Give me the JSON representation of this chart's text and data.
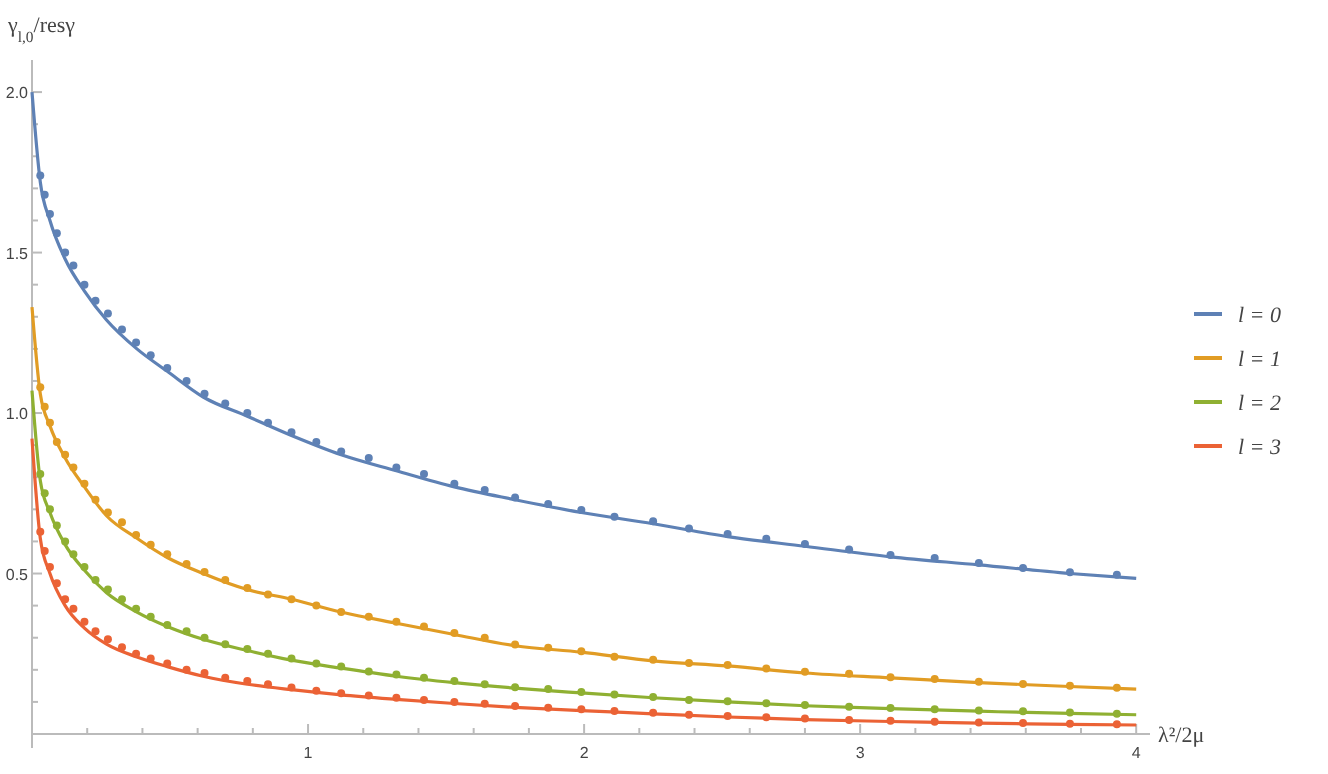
{
  "chart_data": {
    "type": "line",
    "xlabel": "λ²/2μ",
    "ylabel": "γ$_{l,0}$/resγ",
    "xlim": [
      0,
      4.05
    ],
    "ylim": [
      0,
      2.1
    ],
    "xticks": [
      {
        "value": 0.2,
        "label": null
      },
      {
        "value": 0.4,
        "label": null
      },
      {
        "value": 0.6,
        "label": null
      },
      {
        "value": 0.8,
        "label": null
      },
      1,
      {
        "value": 1.2,
        "label": null
      },
      {
        "value": 1.4,
        "label": null
      },
      {
        "value": 1.6,
        "label": null
      },
      {
        "value": 1.8,
        "label": null
      },
      2,
      {
        "value": 2.2,
        "label": null
      },
      {
        "value": 2.4,
        "label": null
      },
      {
        "value": 2.6,
        "label": null
      },
      {
        "value": 2.8,
        "label": null
      },
      3,
      {
        "value": 3.2,
        "label": null
      },
      {
        "value": 3.4,
        "label": null
      },
      {
        "value": 3.6,
        "label": null
      },
      {
        "value": 3.8,
        "label": null
      },
      4
    ],
    "yticks": [
      {
        "value": 0.1,
        "label": null
      },
      {
        "value": 0.2,
        "label": null
      },
      {
        "value": 0.3,
        "label": null
      },
      {
        "value": 0.4,
        "label": null
      },
      0.5,
      {
        "value": 0.6,
        "label": null
      },
      {
        "value": 0.7,
        "label": null
      },
      {
        "value": 0.8,
        "label": null
      },
      {
        "value": 0.9,
        "label": null
      },
      {
        "value": 1,
        "label": "1.0"
      },
      {
        "value": 1.1,
        "label": null
      },
      {
        "value": 1.2,
        "label": null
      },
      {
        "value": 1.3,
        "label": null
      },
      {
        "value": 1.4,
        "label": null
      },
      1.5,
      {
        "value": 1.6,
        "label": null
      },
      {
        "value": 1.7,
        "label": null
      },
      {
        "value": 1.8,
        "label": null
      },
      {
        "value": 1.9,
        "label": null
      },
      {
        "value": 2,
        "label": "2.0"
      }
    ],
    "grid": false,
    "legend": "right",
    "line_style": "solid",
    "marker": "none",
    "series": [
      {
        "name": "l = 0",
        "color": "#5e81b5",
        "x": [
          0,
          0.03,
          0.065,
          0.12,
          0.19,
          0.27,
          0.38,
          0.49,
          0.62,
          0.78,
          0.94,
          1.12,
          1.32,
          1.53,
          1.75,
          1.99,
          2.25,
          2.52,
          2.8,
          3.11,
          3.43,
          3.76,
          4
        ],
        "values": [
          2.0,
          1.72,
          1.6,
          1.48,
          1.38,
          1.29,
          1.2,
          1.13,
          1.05,
          0.99,
          0.93,
          0.87,
          0.82,
          0.77,
          0.73,
          0.69,
          0.655,
          0.615,
          0.585,
          0.552,
          0.527,
          0.5,
          0.485
        ]
      },
      {
        "name": "l = 1",
        "color": "#e19c24",
        "x": [
          0,
          0.03,
          0.065,
          0.12,
          0.19,
          0.27,
          0.38,
          0.49,
          0.62,
          0.78,
          0.94,
          1.12,
          1.32,
          1.53,
          1.75,
          1.99,
          2.25,
          2.52,
          2.8,
          3.11,
          3.43,
          3.76,
          4
        ],
        "values": [
          1.33,
          1.06,
          0.96,
          0.86,
          0.77,
          0.68,
          0.61,
          0.55,
          0.5,
          0.45,
          0.42,
          0.38,
          0.345,
          0.31,
          0.275,
          0.255,
          0.228,
          0.212,
          0.19,
          0.175,
          0.16,
          0.148,
          0.14
        ]
      },
      {
        "name": "l = 2",
        "color": "#8fb032",
        "x": [
          0,
          0.03,
          0.065,
          0.12,
          0.19,
          0.27,
          0.38,
          0.49,
          0.62,
          0.78,
          0.94,
          1.12,
          1.32,
          1.53,
          1.75,
          1.99,
          2.25,
          2.52,
          2.8,
          3.11,
          3.43,
          3.76,
          4
        ],
        "values": [
          1.07,
          0.79,
          0.69,
          0.59,
          0.51,
          0.44,
          0.38,
          0.335,
          0.295,
          0.26,
          0.23,
          0.205,
          0.18,
          0.16,
          0.143,
          0.128,
          0.113,
          0.1,
          0.088,
          0.079,
          0.071,
          0.064,
          0.06
        ]
      },
      {
        "name": "l = 3",
        "color": "#eb6235",
        "x": [
          0,
          0.03,
          0.065,
          0.12,
          0.19,
          0.27,
          0.38,
          0.49,
          0.62,
          0.78,
          0.94,
          1.12,
          1.32,
          1.53,
          1.75,
          1.99,
          2.25,
          2.52,
          2.8,
          3.11,
          3.43,
          3.76,
          4
        ],
        "values": [
          0.92,
          0.61,
          0.5,
          0.4,
          0.33,
          0.28,
          0.24,
          0.21,
          0.18,
          0.155,
          0.138,
          0.122,
          0.108,
          0.095,
          0.083,
          0.073,
          0.063,
          0.053,
          0.045,
          0.039,
          0.034,
          0.03,
          0.028
        ]
      },
      {
        "type": "scatter",
        "marker": "circle",
        "color": "#5e81b5",
        "x": [
          0.03,
          0.046,
          0.065,
          0.09,
          0.12,
          0.15,
          0.19,
          0.23,
          0.275,
          0.326,
          0.377,
          0.43,
          0.49,
          0.56,
          0.625,
          0.7,
          0.78,
          0.855,
          0.94,
          1.03,
          1.12,
          1.22,
          1.32,
          1.42,
          1.53,
          1.64,
          1.75,
          1.87,
          1.99,
          2.11,
          2.25,
          2.38,
          2.52,
          2.66,
          2.8,
          2.96,
          3.11,
          3.27,
          3.43,
          3.59,
          3.76,
          3.93
        ],
        "values": [
          1.74,
          1.68,
          1.62,
          1.56,
          1.5,
          1.46,
          1.4,
          1.35,
          1.31,
          1.26,
          1.22,
          1.18,
          1.14,
          1.1,
          1.06,
          1.03,
          1.0,
          0.97,
          0.94,
          0.91,
          0.88,
          0.86,
          0.83,
          0.81,
          0.78,
          0.76,
          0.737,
          0.717,
          0.698,
          0.677,
          0.663,
          0.64,
          0.623,
          0.608,
          0.592,
          0.575,
          0.558,
          0.548,
          0.533,
          0.517,
          0.504,
          0.496
        ]
      },
      {
        "type": "scatter",
        "marker": "circle",
        "color": "#e19c24",
        "x": [
          0.03,
          0.046,
          0.065,
          0.09,
          0.12,
          0.15,
          0.19,
          0.23,
          0.275,
          0.326,
          0.377,
          0.43,
          0.49,
          0.56,
          0.625,
          0.7,
          0.78,
          0.855,
          0.94,
          1.03,
          1.12,
          1.22,
          1.32,
          1.42,
          1.53,
          1.64,
          1.75,
          1.87,
          1.99,
          2.11,
          2.25,
          2.38,
          2.52,
          2.66,
          2.8,
          2.96,
          3.11,
          3.27,
          3.43,
          3.59,
          3.76,
          3.93
        ],
        "values": [
          1.08,
          1.02,
          0.97,
          0.91,
          0.87,
          0.83,
          0.78,
          0.73,
          0.69,
          0.66,
          0.62,
          0.59,
          0.56,
          0.53,
          0.505,
          0.48,
          0.455,
          0.435,
          0.42,
          0.4,
          0.38,
          0.365,
          0.35,
          0.335,
          0.315,
          0.3,
          0.279,
          0.269,
          0.258,
          0.241,
          0.231,
          0.221,
          0.215,
          0.204,
          0.194,
          0.188,
          0.177,
          0.171,
          0.163,
          0.156,
          0.15,
          0.144
        ]
      },
      {
        "type": "scatter",
        "marker": "circle",
        "color": "#8fb032",
        "x": [
          0.03,
          0.046,
          0.065,
          0.09,
          0.12,
          0.15,
          0.19,
          0.23,
          0.275,
          0.326,
          0.377,
          0.43,
          0.49,
          0.56,
          0.625,
          0.7,
          0.78,
          0.855,
          0.94,
          1.03,
          1.12,
          1.22,
          1.32,
          1.42,
          1.53,
          1.64,
          1.75,
          1.87,
          1.99,
          2.11,
          2.25,
          2.38,
          2.52,
          2.66,
          2.8,
          2.96,
          3.11,
          3.27,
          3.43,
          3.59,
          3.76,
          3.93
        ],
        "values": [
          0.81,
          0.75,
          0.7,
          0.65,
          0.6,
          0.56,
          0.52,
          0.48,
          0.45,
          0.42,
          0.39,
          0.365,
          0.34,
          0.32,
          0.3,
          0.28,
          0.265,
          0.25,
          0.235,
          0.22,
          0.21,
          0.195,
          0.185,
          0.175,
          0.165,
          0.155,
          0.146,
          0.14,
          0.131,
          0.123,
          0.115,
          0.106,
          0.102,
          0.096,
          0.09,
          0.085,
          0.081,
          0.077,
          0.073,
          0.071,
          0.067,
          0.063
        ]
      },
      {
        "type": "scatter",
        "marker": "circle",
        "color": "#eb6235",
        "x": [
          0.03,
          0.046,
          0.065,
          0.09,
          0.12,
          0.15,
          0.19,
          0.23,
          0.275,
          0.326,
          0.377,
          0.43,
          0.49,
          0.56,
          0.625,
          0.7,
          0.78,
          0.855,
          0.94,
          1.03,
          1.12,
          1.22,
          1.32,
          1.42,
          1.53,
          1.64,
          1.75,
          1.87,
          1.99,
          2.11,
          2.25,
          2.38,
          2.52,
          2.66,
          2.8,
          2.96,
          3.11,
          3.27,
          3.43,
          3.59,
          3.76,
          3.93
        ],
        "values": [
          0.63,
          0.57,
          0.52,
          0.47,
          0.42,
          0.39,
          0.35,
          0.32,
          0.295,
          0.27,
          0.25,
          0.235,
          0.22,
          0.2,
          0.19,
          0.175,
          0.165,
          0.155,
          0.145,
          0.135,
          0.127,
          0.12,
          0.113,
          0.106,
          0.1,
          0.094,
          0.087,
          0.082,
          0.077,
          0.072,
          0.066,
          0.06,
          0.056,
          0.052,
          0.048,
          0.044,
          0.041,
          0.038,
          0.036,
          0.034,
          0.032,
          0.03
        ]
      }
    ]
  }
}
